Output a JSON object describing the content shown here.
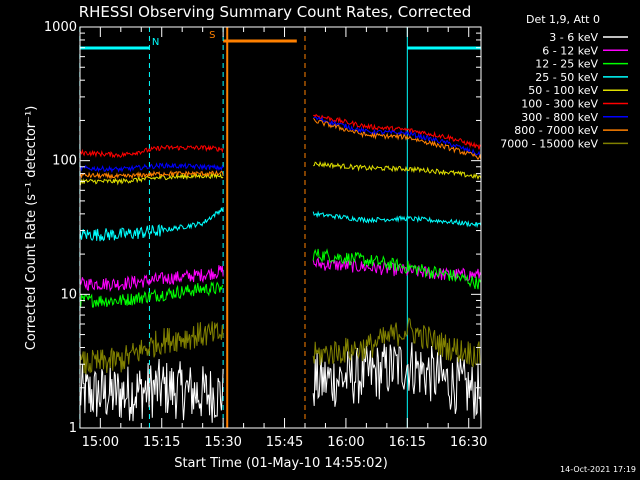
{
  "chart_data": {
    "type": "line",
    "title": "RHESSI Observing Summary Count Rates, Corrected",
    "xlabel": "Start Time (01-May-10 14:55:02)",
    "ylabel": "Corrected Count Rate (s⁻¹ detector⁻¹)",
    "y_scale": "log",
    "ylim": [
      1,
      1000
    ],
    "xlim": [
      "14:55:02",
      "16:33:00"
    ],
    "x_ticks": [
      "15:00",
      "15:15",
      "15:30",
      "15:45",
      "16:00",
      "16:15",
      "16:30"
    ],
    "y_ticks": [
      "1",
      "10",
      "100",
      "1000"
    ],
    "legend_header": "Det 1,9, Att 0",
    "legend_position": "outside-right",
    "timestamp": "14-Oct-2021 17:19",
    "data_gap": [
      "15:31",
      "15:50"
    ],
    "flags": [
      {
        "label": "N",
        "start": "14:55",
        "end": "15:12",
        "color": "#00ffff"
      },
      {
        "label": "S",
        "start": "15:30",
        "end": "15:48",
        "color": "#ff8000"
      },
      {
        "label": "",
        "start": "16:15",
        "end": "16:33",
        "color": "#00ffff"
      }
    ],
    "vlines": [
      {
        "time": "14:55",
        "color": "#00ffff",
        "style": "dashed"
      },
      {
        "time": "15:12",
        "color": "#00ffff",
        "style": "dashed"
      },
      {
        "time": "15:30",
        "color": "#00ffff",
        "style": "dashed"
      },
      {
        "time": "15:31",
        "color": "#ff8000",
        "style": "solid"
      },
      {
        "time": "15:50",
        "color": "#ff8000",
        "style": "dashed"
      },
      {
        "time": "16:15",
        "color": "#00ffff",
        "style": "solid"
      },
      {
        "time": "16:33",
        "color": "#00ffff",
        "style": "dashed"
      }
    ],
    "segments": [
      "14:55-15:30",
      "15:52-16:33"
    ],
    "series": [
      {
        "name": "3 - 6 keV",
        "color": "#ffffff",
        "seg1": {
          "t": [
            "14:55",
            "15:05",
            "15:15",
            "15:25",
            "15:30"
          ],
          "y": [
            1.8,
            1.8,
            2.0,
            1.8,
            1.8
          ]
        },
        "seg2": {
          "t": [
            "15:52",
            "16:05",
            "16:15",
            "16:25",
            "16:33"
          ],
          "y": [
            2.2,
            2.5,
            3.0,
            2.2,
            1.8
          ]
        }
      },
      {
        "name": "6 - 12 keV",
        "color": "#ff00ff",
        "seg1": {
          "t": [
            "14:55",
            "15:05",
            "15:15",
            "15:25",
            "15:30"
          ],
          "y": [
            12,
            12,
            13,
            14,
            15
          ]
        },
        "seg2": {
          "t": [
            "15:52",
            "16:05",
            "16:15",
            "16:25",
            "16:33"
          ],
          "y": [
            17,
            16,
            15,
            14,
            14
          ]
        }
      },
      {
        "name": "12 - 25 keV",
        "color": "#00ff00",
        "seg1": {
          "t": [
            "14:55",
            "15:05",
            "15:15",
            "15:25",
            "15:30"
          ],
          "y": [
            9,
            9,
            10,
            11,
            11
          ]
        },
        "seg2": {
          "t": [
            "15:52",
            "16:05",
            "16:15",
            "16:25",
            "16:33"
          ],
          "y": [
            20,
            18,
            16,
            14,
            12
          ]
        }
      },
      {
        "name": "25 - 50 keV",
        "color": "#00ffff",
        "seg1": {
          "t": [
            "14:55",
            "15:05",
            "15:15",
            "15:25",
            "15:30"
          ],
          "y": [
            28,
            28,
            30,
            34,
            44
          ]
        },
        "seg2": {
          "t": [
            "15:52",
            "16:05",
            "16:15",
            "16:25",
            "16:33"
          ],
          "y": [
            40,
            36,
            37,
            35,
            33
          ]
        }
      },
      {
        "name": "50 - 100 keV",
        "color": "#e0e000",
        "seg1": {
          "t": [
            "14:55",
            "15:05",
            "15:15",
            "15:25",
            "15:30"
          ],
          "y": [
            70,
            70,
            75,
            77,
            77
          ]
        },
        "seg2": {
          "t": [
            "15:52",
            "16:05",
            "16:15",
            "16:25",
            "16:33"
          ],
          "y": [
            95,
            88,
            87,
            82,
            75
          ]
        }
      },
      {
        "name": "100 - 300 keV",
        "color": "#ff0000",
        "seg1": {
          "t": [
            "14:55",
            "15:05",
            "15:15",
            "15:25",
            "15:30"
          ],
          "y": [
            115,
            110,
            125,
            125,
            122
          ]
        },
        "seg2": {
          "t": [
            "15:52",
            "16:05",
            "16:15",
            "16:25",
            "16:33"
          ],
          "y": [
            220,
            180,
            170,
            150,
            125
          ]
        }
      },
      {
        "name": "300 - 800 keV",
        "color": "#0000ff",
        "seg1": {
          "t": [
            "14:55",
            "15:05",
            "15:15",
            "15:25",
            "15:30"
          ],
          "y": [
            88,
            86,
            92,
            90,
            88
          ]
        },
        "seg2": {
          "t": [
            "15:52",
            "16:05",
            "16:15",
            "16:25",
            "16:33"
          ],
          "y": [
            210,
            165,
            160,
            135,
            110
          ]
        }
      },
      {
        "name": "800 - 7000 keV",
        "color": "#ff8000",
        "seg1": {
          "t": [
            "14:55",
            "15:05",
            "15:15",
            "15:25",
            "15:30"
          ],
          "y": [
            78,
            76,
            80,
            80,
            80
          ]
        },
        "seg2": {
          "t": [
            "15:52",
            "16:05",
            "16:15",
            "16:25",
            "16:33"
          ],
          "y": [
            200,
            155,
            150,
            125,
            105
          ]
        }
      },
      {
        "name": "7000 - 15000 keV",
        "color": "#808000",
        "seg1": {
          "t": [
            "14:55",
            "15:05",
            "15:15",
            "15:25",
            "15:30"
          ],
          "y": [
            3.0,
            3.2,
            4.5,
            5.0,
            5.0
          ]
        },
        "seg2": {
          "t": [
            "15:52",
            "16:05",
            "16:15",
            "16:25",
            "16:33"
          ],
          "y": [
            3.5,
            4.0,
            5.5,
            4.0,
            3.5
          ]
        }
      }
    ]
  }
}
